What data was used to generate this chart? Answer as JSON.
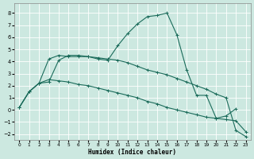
{
  "xlabel": "Humidex (Indice chaleur)",
  "bg_color": "#cce8e0",
  "grid_color": "#ffffff",
  "line_color": "#1a6b5a",
  "ylim": [
    -2.5,
    8.8
  ],
  "xlim": [
    -0.5,
    23.5
  ],
  "yticks": [
    -2,
    -1,
    0,
    1,
    2,
    3,
    4,
    5,
    6,
    7,
    8
  ],
  "xticks": [
    0,
    1,
    2,
    3,
    4,
    5,
    6,
    7,
    8,
    9,
    10,
    11,
    12,
    13,
    14,
    15,
    16,
    17,
    18,
    19,
    20,
    21,
    22,
    23
  ],
  "line1": {
    "x": [
      0,
      1,
      2,
      3,
      4,
      5,
      6,
      7,
      8,
      9,
      10,
      11,
      12,
      13,
      14,
      15,
      16,
      17,
      18,
      19,
      20,
      21,
      22
    ],
    "y": [
      0.2,
      1.5,
      2.2,
      2.3,
      4.1,
      4.5,
      4.5,
      4.4,
      4.2,
      4.1,
      5.3,
      6.3,
      7.1,
      7.7,
      7.8,
      8.0,
      6.2,
      3.3,
      1.2,
      1.2,
      -0.7,
      -0.5,
      0.1
    ]
  },
  "line2": {
    "x": [
      0,
      1,
      2,
      3,
      4,
      5,
      6,
      7,
      8,
      9,
      10,
      11,
      12,
      13,
      14,
      15,
      16,
      17,
      18,
      19,
      20,
      21,
      22,
      23
    ],
    "y": [
      0.2,
      1.5,
      2.2,
      4.2,
      4.5,
      4.4,
      4.4,
      4.4,
      4.3,
      4.2,
      4.1,
      3.9,
      3.6,
      3.3,
      3.1,
      2.9,
      2.6,
      2.3,
      2.0,
      1.7,
      1.3,
      1.0,
      -1.7,
      -2.2
    ]
  },
  "line3": {
    "x": [
      0,
      1,
      2,
      3,
      4,
      5,
      6,
      7,
      8,
      9,
      10,
      11,
      12,
      13,
      14,
      15,
      16,
      17,
      18,
      19,
      20,
      21,
      22,
      23
    ],
    "y": [
      0.2,
      1.5,
      2.2,
      2.5,
      2.4,
      2.3,
      2.1,
      2.0,
      1.8,
      1.6,
      1.4,
      1.2,
      1.0,
      0.7,
      0.5,
      0.2,
      0.0,
      -0.2,
      -0.4,
      -0.6,
      -0.7,
      -0.8,
      -0.9,
      -1.8
    ]
  }
}
